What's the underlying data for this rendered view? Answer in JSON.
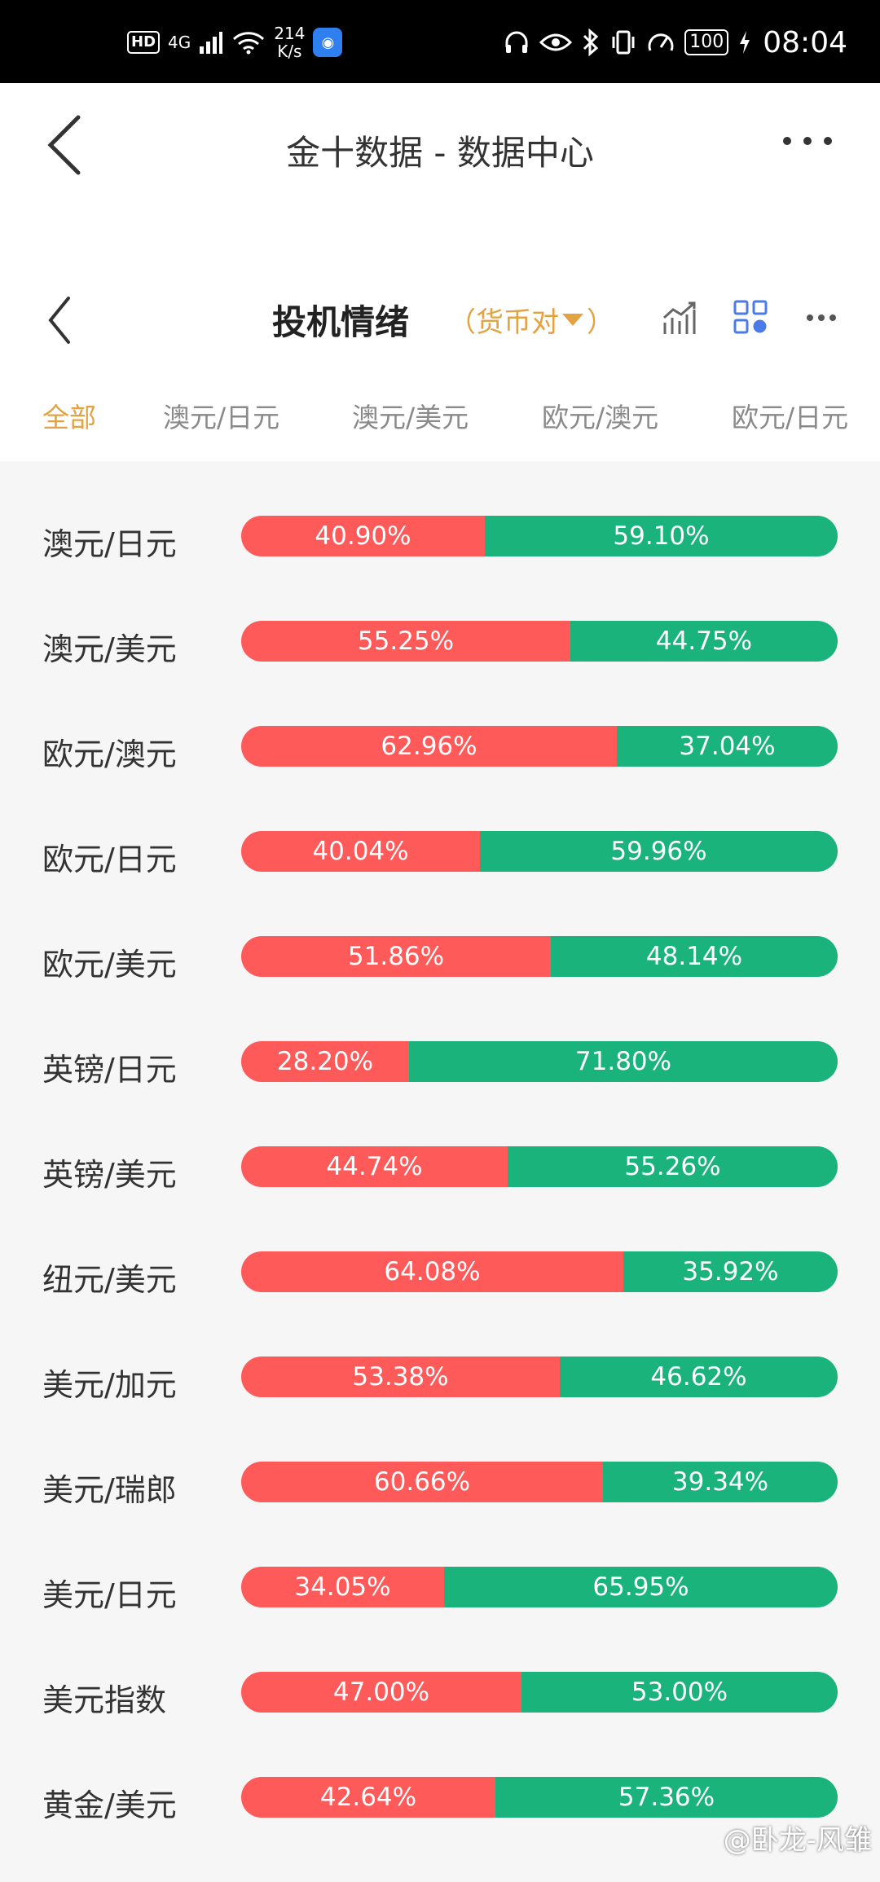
{
  "status_bar": {
    "network": "HD",
    "signal": "4G",
    "speed_value": "214",
    "speed_unit": "K/s",
    "battery": "100",
    "time": "08:04"
  },
  "header": {
    "title": "金十数据 - 数据中心"
  },
  "panel": {
    "title": "投机情绪",
    "filter_prefix": "（货币对",
    "filter_suffix": "）",
    "tabs": [
      "全部",
      "澳元/日元",
      "澳元/美元",
      "欧元/澳元",
      "欧元/日元"
    ]
  },
  "rows": [
    {
      "pair": "澳元/日元",
      "long": 40.9,
      "short": 59.1,
      "long_label": "40.90%",
      "short_label": "59.10%"
    },
    {
      "pair": "澳元/美元",
      "long": 55.25,
      "short": 44.75,
      "long_label": "55.25%",
      "short_label": "44.75%"
    },
    {
      "pair": "欧元/澳元",
      "long": 62.96,
      "short": 37.04,
      "long_label": "62.96%",
      "short_label": "37.04%"
    },
    {
      "pair": "欧元/日元",
      "long": 40.04,
      "short": 59.96,
      "long_label": "40.04%",
      "short_label": "59.96%"
    },
    {
      "pair": "欧元/美元",
      "long": 51.86,
      "short": 48.14,
      "long_label": "51.86%",
      "short_label": "48.14%"
    },
    {
      "pair": "英镑/日元",
      "long": 28.2,
      "short": 71.8,
      "long_label": "28.20%",
      "short_label": "71.80%"
    },
    {
      "pair": "英镑/美元",
      "long": 44.74,
      "short": 55.26,
      "long_label": "44.74%",
      "short_label": "55.26%"
    },
    {
      "pair": "纽元/美元",
      "long": 64.08,
      "short": 35.92,
      "long_label": "64.08%",
      "short_label": "35.92%"
    },
    {
      "pair": "美元/加元",
      "long": 53.38,
      "short": 46.62,
      "long_label": "53.38%",
      "short_label": "46.62%"
    },
    {
      "pair": "美元/瑞郎",
      "long": 60.66,
      "short": 39.34,
      "long_label": "60.66%",
      "short_label": "39.34%"
    },
    {
      "pair": "美元/日元",
      "long": 34.05,
      "short": 65.95,
      "long_label": "34.05%",
      "short_label": "65.95%"
    },
    {
      "pair": "美元指数",
      "long": 47.0,
      "short": 53.0,
      "long_label": "47.00%",
      "short_label": "53.00%"
    },
    {
      "pair": "黄金/美元",
      "long": 42.64,
      "short": 57.36,
      "long_label": "42.64%",
      "short_label": "57.36%"
    }
  ],
  "colors": {
    "long": "#ff5a5a",
    "short": "#1ab37b",
    "accent": "#e4a342"
  },
  "watermark": "@卧龙-风雏"
}
